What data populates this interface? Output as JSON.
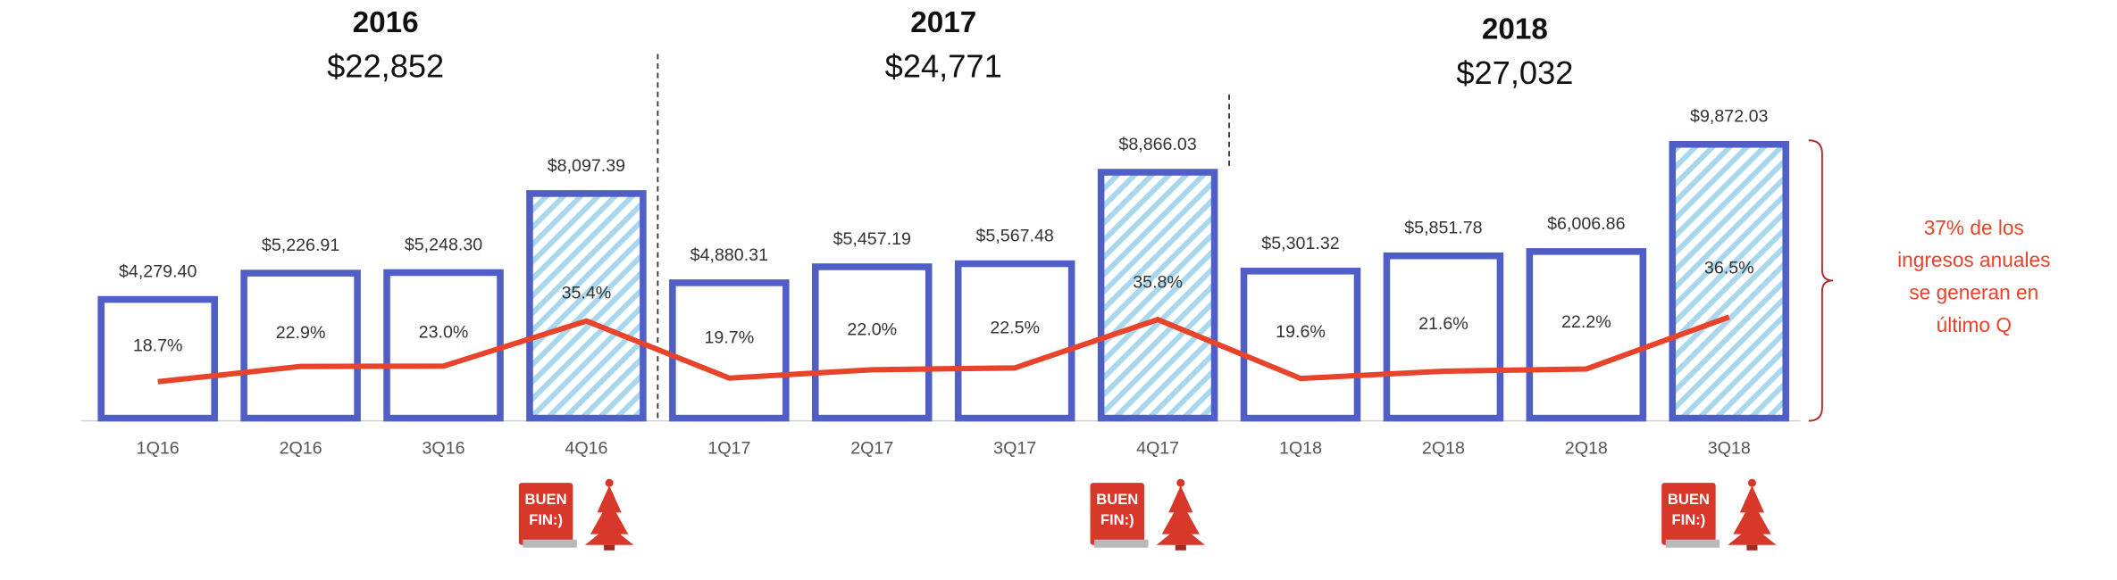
{
  "chart_data": {
    "type": "bar",
    "groups": [
      {
        "year": "2016",
        "total": "$22,852"
      },
      {
        "year": "2017",
        "total": "$24,771"
      },
      {
        "year": "2018",
        "total": "$27,032"
      }
    ],
    "categories": [
      "1Q16",
      "2Q16",
      "3Q16",
      "4Q16",
      "1Q17",
      "2Q17",
      "3Q17",
      "4Q17",
      "1Q18",
      "2Q18",
      "2Q18",
      "3Q18"
    ],
    "values": [
      4279.4,
      5226.91,
      5248.3,
      8097.39,
      4880.31,
      5457.19,
      5567.48,
      8866.03,
      5301.32,
      5851.78,
      6006.86,
      9872.03
    ],
    "value_labels": [
      "$4,279.40",
      "$5,226.91",
      "$5,248.30",
      "$8,097.39",
      "$4,880.31",
      "$5,457.19",
      "$5,567.48",
      "$8,866.03",
      "$5,301.32",
      "$5,851.78",
      "$6,006.86",
      "$9,872.03"
    ],
    "color": "#4f5fc6",
    "hatched": [
      false,
      false,
      false,
      true,
      false,
      false,
      false,
      true,
      false,
      false,
      false,
      true
    ],
    "hatch_color": "#a9d8ee",
    "share": {
      "type": "line",
      "values": [
        18.7,
        22.9,
        23.0,
        35.4,
        19.7,
        22.0,
        22.5,
        35.8,
        19.6,
        21.6,
        22.2,
        36.5
      ],
      "value_labels": [
        "18.7%",
        "22.9%",
        "23.0%",
        "35.4%",
        "19.7%",
        "22.0%",
        "22.5%",
        "35.8%",
        "19.6%",
        "21.6%",
        "22.2%",
        "36.5%"
      ],
      "color": "#e8432b"
    },
    "annotation": [
      "37% de los",
      "ingresos  anuales",
      "se generan en",
      "último Q"
    ],
    "annotation_color": "#e8432b",
    "logo_text": [
      "BUEN",
      "FIN:)"
    ]
  }
}
